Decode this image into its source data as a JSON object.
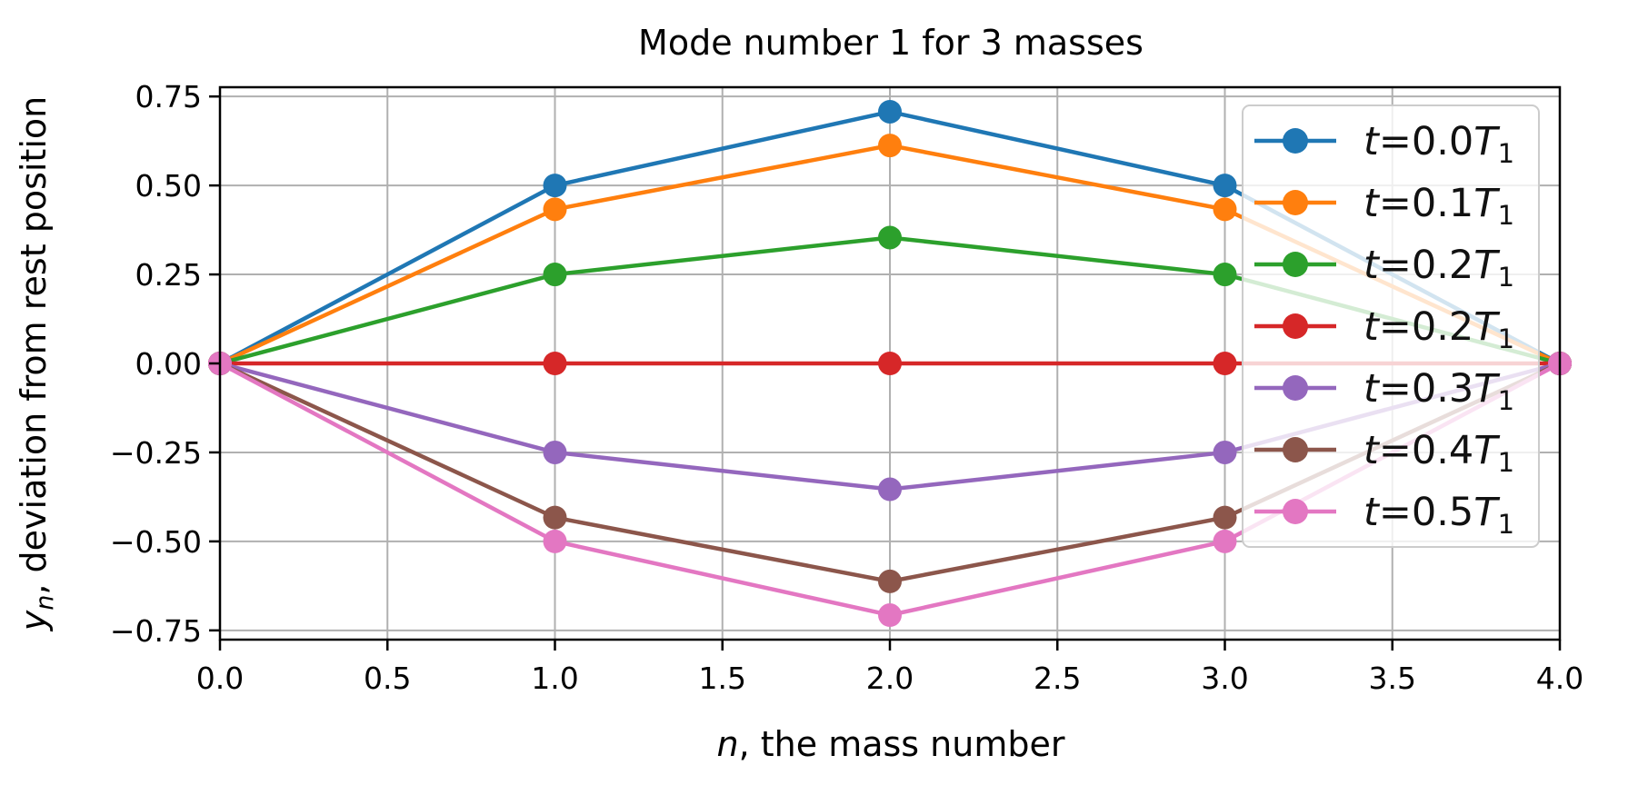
{
  "chart_data": {
    "type": "line",
    "title": "Mode number 1 for 3 masses",
    "xlabel": {
      "var": "n",
      "text": ", the mass number"
    },
    "ylabel": {
      "var": "y",
      "sub": "n",
      "text": ", deviation from rest position"
    },
    "xlim": [
      0,
      4
    ],
    "ylim": [
      -0.776,
      0.776
    ],
    "xticks": [
      "0.0",
      "0.5",
      "1.0",
      "1.5",
      "2.0",
      "2.5",
      "3.0",
      "3.5",
      "4.0"
    ],
    "yticks": [
      "0.75",
      "0.50",
      "0.25",
      "0.00",
      "−0.25",
      "−0.50",
      "−0.75"
    ],
    "ytick_values": [
      0.75,
      0.5,
      0.25,
      0,
      -0.25,
      -0.5,
      -0.75
    ],
    "grid": true,
    "legend_placement": "right",
    "marker": "circle",
    "x": [
      0,
      1,
      2,
      3,
      4
    ],
    "series": [
      {
        "name": {
          "var": "t",
          "value": "=0.0",
          "sym": "T",
          "sub": "1"
        },
        "color": "#1f77b4",
        "values": [
          0,
          0.5,
          0.7071,
          0.5,
          0
        ]
      },
      {
        "name": {
          "var": "t",
          "value": "=0.1",
          "sym": "T",
          "sub": "1"
        },
        "color": "#ff7f0e",
        "values": [
          0,
          0.433,
          0.6124,
          0.433,
          0
        ]
      },
      {
        "name": {
          "var": "t",
          "value": "=0.2",
          "sym": "T",
          "sub": "1"
        },
        "color": "#2ca02c",
        "values": [
          0,
          0.25,
          0.3536,
          0.25,
          0
        ]
      },
      {
        "name": {
          "var": "t",
          "value": "=0.2",
          "sym": "T",
          "sub": "1"
        },
        "color": "#d62728",
        "values": [
          0,
          0,
          0,
          0,
          0
        ]
      },
      {
        "name": {
          "var": "t",
          "value": "=0.3",
          "sym": "T",
          "sub": "1"
        },
        "color": "#9467bd",
        "values": [
          0,
          -0.25,
          -0.3536,
          -0.25,
          0
        ]
      },
      {
        "name": {
          "var": "t",
          "value": "=0.4",
          "sym": "T",
          "sub": "1"
        },
        "color": "#8c564b",
        "values": [
          0,
          -0.433,
          -0.6124,
          -0.433,
          0
        ]
      },
      {
        "name": {
          "var": "t",
          "value": "=0.5",
          "sym": "T",
          "sub": "1"
        },
        "color": "#e377c2",
        "values": [
          0,
          -0.5,
          -0.7071,
          -0.5,
          0
        ]
      }
    ]
  }
}
